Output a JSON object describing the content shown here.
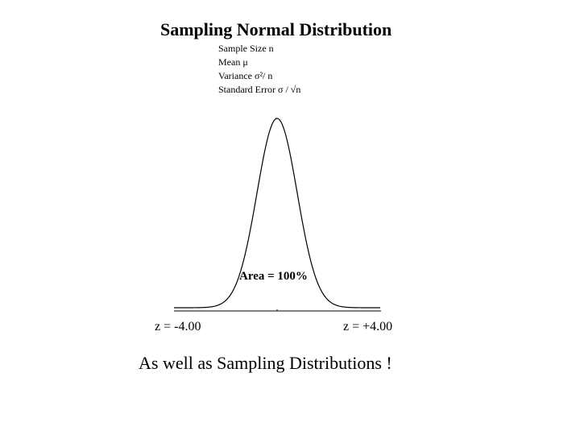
{
  "title": "Sampling Normal Distribution",
  "parameters": {
    "sample_size": "Sample Size n",
    "mean": "Mean μ",
    "variance": "Variance σ²/ n",
    "standard_error": "Standard Error σ / √n"
  },
  "area_label": "Area = 100%",
  "z_left": "z = -4.00",
  "z_right": "z = +4.00",
  "footer": "As well as Sampling Distributions !",
  "chart_data": {
    "type": "area",
    "distribution": "normal",
    "x_range": [
      -4.0,
      4.0
    ],
    "shaded_from": -4.0,
    "shaded_to": 4.0,
    "area_percent": 100
  }
}
